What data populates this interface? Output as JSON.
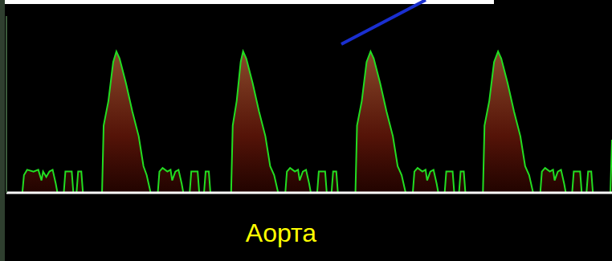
{
  "chart_data": {
    "type": "line",
    "annotation": "Аорта",
    "color": "#22dd22",
    "xlim": [
      0,
      760
    ],
    "ylim": [
      0,
      100
    ],
    "tick_labels": false,
    "x": [
      20,
      22,
      26,
      34,
      40,
      44,
      46,
      50,
      54,
      58,
      62,
      64,
      72,
      74,
      80,
      82,
      84,
      88,
      90,
      94,
      96,
      118,
      120,
      122,
      128,
      134,
      138,
      142,
      150,
      158,
      166,
      172,
      176,
      181,
      190,
      192,
      196,
      202,
      206,
      208,
      212,
      216,
      220,
      222,
      230,
      232,
      240,
      242,
      248,
      250,
      254,
      256,
      280,
      282,
      284,
      289,
      294,
      297,
      301,
      309,
      317,
      325,
      331,
      336,
      341,
      350,
      352,
      356,
      362,
      366,
      368,
      372,
      376,
      380,
      382,
      390,
      392,
      400,
      402,
      408,
      410,
      414,
      416,
      436,
      438,
      440,
      446,
      452,
      457,
      461,
      469,
      477,
      485,
      491,
      496,
      501,
      510,
      512,
      516,
      522,
      526,
      528,
      532,
      536,
      540,
      542,
      550,
      552,
      560,
      562,
      568,
      570,
      574,
      576,
      596,
      598,
      600,
      606,
      612,
      617,
      621,
      629,
      637,
      645,
      651,
      656,
      661,
      670,
      672,
      676,
      682,
      686,
      688,
      692,
      696,
      700,
      702,
      710,
      712,
      720,
      722,
      728,
      730,
      734,
      736,
      756,
      758,
      760
    ],
    "values": [
      0,
      10,
      13,
      12,
      13,
      7,
      12,
      9,
      12,
      13,
      5,
      0,
      0,
      12,
      12,
      12,
      0,
      0,
      12,
      12,
      0,
      0,
      0,
      38,
      52,
      74,
      80,
      76,
      62,
      46,
      32,
      15,
      10,
      0,
      0,
      12,
      14,
      12,
      13,
      7,
      12,
      13,
      5,
      0,
      0,
      12,
      12,
      0,
      0,
      12,
      12,
      0,
      0,
      0,
      38,
      52,
      74,
      80,
      76,
      62,
      46,
      32,
      15,
      10,
      0,
      0,
      12,
      14,
      12,
      13,
      7,
      12,
      13,
      5,
      0,
      0,
      12,
      12,
      0,
      0,
      12,
      12,
      0,
      0,
      0,
      38,
      52,
      74,
      80,
      76,
      62,
      46,
      32,
      15,
      10,
      0,
      0,
      12,
      14,
      12,
      13,
      7,
      12,
      13,
      5,
      0,
      0,
      12,
      12,
      0,
      0,
      12,
      12,
      0,
      0,
      0,
      38,
      52,
      74,
      80,
      76,
      62,
      46,
      32,
      15,
      10,
      0,
      0,
      12,
      14,
      12,
      13,
      7,
      12,
      13,
      5,
      0,
      0,
      12,
      12,
      0,
      0,
      12,
      12,
      0,
      0,
      0,
      30
    ]
  }
}
